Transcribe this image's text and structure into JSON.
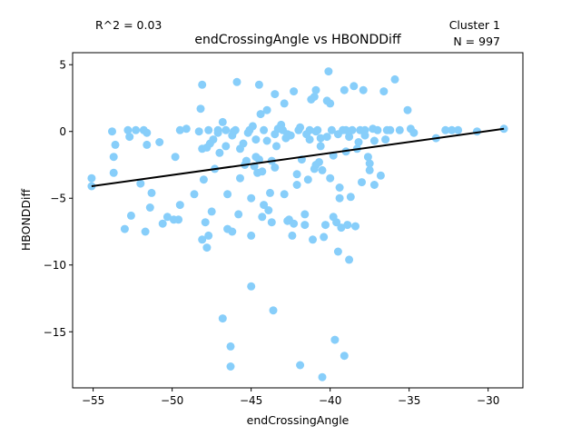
{
  "chart_data": {
    "type": "scatter",
    "title": "endCrossingAngle vs HBONDDiff",
    "xlabel": "endCrossingAngle",
    "ylabel": "HBONDDiff",
    "annotations": {
      "r_squared": "R^2 = 0.03",
      "cluster": "Cluster 1",
      "n": "N = 997"
    },
    "xlim": [
      -56.3,
      -27.8
    ],
    "ylim": [
      -19.2,
      5.9
    ],
    "xticks": [
      -55,
      -50,
      -45,
      -40,
      -35,
      -30
    ],
    "yticks": [
      5,
      0,
      -5,
      -10,
      -15
    ],
    "grid": false,
    "point_color": "#87cefa",
    "line_color": "#000000",
    "regression_line": {
      "x": [
        -55.1,
        -29.0
      ],
      "y": [
        -4.1,
        0.2
      ]
    },
    "points": [
      [
        -55.1,
        -3.5
      ],
      [
        -53.8,
        0.0
      ],
      [
        -53.6,
        -1.0
      ],
      [
        -53.7,
        -1.9
      ],
      [
        -53.7,
        -3.1
      ],
      [
        -53.0,
        -7.3
      ],
      [
        -52.8,
        0.1
      ],
      [
        -52.7,
        -0.4
      ],
      [
        -52.6,
        -6.3
      ],
      [
        -52.3,
        0.1
      ],
      [
        -52.0,
        -3.9
      ],
      [
        -51.8,
        0.1
      ],
      [
        -51.6,
        -0.1
      ],
      [
        -51.7,
        -7.5
      ],
      [
        -51.6,
        -1.0
      ],
      [
        -51.4,
        -5.7
      ],
      [
        -51.3,
        -4.6
      ],
      [
        -50.8,
        -0.8
      ],
      [
        -50.6,
        -6.9
      ],
      [
        -50.3,
        -6.4
      ],
      [
        -49.9,
        -6.6
      ],
      [
        -49.6,
        -6.6
      ],
      [
        -49.5,
        0.1
      ],
      [
        -49.5,
        -5.5
      ],
      [
        -49.1,
        0.2
      ],
      [
        -48.6,
        -4.7
      ],
      [
        -48.3,
        0.0
      ],
      [
        -48.2,
        1.7
      ],
      [
        -48.1,
        3.5
      ],
      [
        -48.0,
        -3.6
      ],
      [
        -48.1,
        -1.3
      ],
      [
        -48.1,
        -8.1
      ],
      [
        -47.9,
        -6.8
      ],
      [
        -47.8,
        -8.7
      ],
      [
        -47.7,
        -7.8
      ],
      [
        -47.7,
        0.1
      ],
      [
        -47.8,
        -1.2
      ],
      [
        -47.6,
        -0.9
      ],
      [
        -47.5,
        -6.0
      ],
      [
        -47.3,
        -2.8
      ],
      [
        -47.1,
        -0.1
      ],
      [
        -47.1,
        0.1
      ],
      [
        -47.0,
        -1.6
      ],
      [
        -46.8,
        0.7
      ],
      [
        -46.8,
        -14.0
      ],
      [
        -46.6,
        -1.1
      ],
      [
        -46.6,
        0.1
      ],
      [
        -46.5,
        -7.3
      ],
      [
        -46.5,
        -4.7
      ],
      [
        -46.3,
        -17.6
      ],
      [
        -46.3,
        -16.1
      ],
      [
        -46.2,
        -7.5
      ],
      [
        -46.1,
        0.0
      ],
      [
        -46.0,
        0.1
      ],
      [
        -45.9,
        3.7
      ],
      [
        -45.8,
        -6.2
      ],
      [
        -45.7,
        -3.5
      ],
      [
        -45.7,
        -1.3
      ],
      [
        -45.4,
        -2.5
      ],
      [
        -45.3,
        -2.2
      ],
      [
        -45.2,
        -0.1
      ],
      [
        -45.1,
        0.1
      ],
      [
        -45.0,
        -5.0
      ],
      [
        -45.0,
        -7.8
      ],
      [
        -45.0,
        -11.6
      ],
      [
        -44.8,
        -2.6
      ],
      [
        -44.7,
        -1.9
      ],
      [
        -44.7,
        -0.6
      ],
      [
        -44.5,
        -2.1
      ],
      [
        -44.5,
        3.5
      ],
      [
        -44.4,
        1.3
      ],
      [
        -44.3,
        -3.0
      ],
      [
        -44.3,
        -6.4
      ],
      [
        -44.2,
        -5.5
      ],
      [
        -44.2,
        0.1
      ],
      [
        -44.0,
        1.6
      ],
      [
        -43.9,
        -5.9
      ],
      [
        -43.8,
        -4.6
      ],
      [
        -43.7,
        -2.2
      ],
      [
        -43.7,
        -6.8
      ],
      [
        -43.6,
        -13.4
      ],
      [
        -43.5,
        -2.7
      ],
      [
        -43.5,
        2.8
      ],
      [
        -43.4,
        -1.1
      ],
      [
        -43.3,
        0.2
      ],
      [
        -43.1,
        0.5
      ],
      [
        -43.0,
        0.1
      ],
      [
        -42.9,
        2.1
      ],
      [
        -42.8,
        -0.5
      ],
      [
        -42.7,
        -6.7
      ],
      [
        -42.6,
        -6.6
      ],
      [
        -42.5,
        -0.3
      ],
      [
        -42.4,
        -7.8
      ],
      [
        -42.3,
        -6.9
      ],
      [
        -42.3,
        3.0
      ],
      [
        -42.1,
        -4.0
      ],
      [
        -42.1,
        -3.2
      ],
      [
        -41.9,
        -17.5
      ],
      [
        -41.9,
        0.3
      ],
      [
        -41.8,
        -2.1
      ],
      [
        -41.6,
        -6.2
      ],
      [
        -41.6,
        -7.0
      ],
      [
        -41.4,
        -3.6
      ],
      [
        -41.3,
        -0.6
      ],
      [
        -41.3,
        0.1
      ],
      [
        -41.2,
        2.4
      ],
      [
        -41.1,
        -8.1
      ],
      [
        -41.0,
        -2.8
      ],
      [
        -41.0,
        2.6
      ],
      [
        -40.9,
        3.1
      ],
      [
        -40.9,
        -2.5
      ],
      [
        -40.8,
        0.1
      ],
      [
        -40.7,
        -2.3
      ],
      [
        -40.6,
        -1.1
      ],
      [
        -40.6,
        -0.5
      ],
      [
        -40.5,
        -18.4
      ],
      [
        -40.5,
        -2.9
      ],
      [
        -40.4,
        -7.9
      ],
      [
        -40.3,
        -7.0
      ],
      [
        -40.2,
        2.3
      ],
      [
        -40.1,
        4.5
      ],
      [
        -40.0,
        -3.5
      ],
      [
        -40.0,
        2.1
      ],
      [
        -39.9,
        0.1
      ],
      [
        -39.8,
        -1.8
      ],
      [
        -39.8,
        -6.4
      ],
      [
        -39.7,
        -15.6
      ],
      [
        -39.6,
        -6.8
      ],
      [
        -39.5,
        -9.0
      ],
      [
        -39.4,
        -4.2
      ],
      [
        -39.4,
        -5.0
      ],
      [
        -39.3,
        -7.2
      ],
      [
        -39.1,
        3.1
      ],
      [
        -39.1,
        -16.8
      ],
      [
        -39.0,
        -1.5
      ],
      [
        -39.0,
        0.1
      ],
      [
        -38.9,
        -7.0
      ],
      [
        -38.8,
        -9.6
      ],
      [
        -38.7,
        -4.9
      ],
      [
        -38.6,
        0.1
      ],
      [
        -38.5,
        3.4
      ],
      [
        -38.4,
        -7.1
      ],
      [
        -38.3,
        -1.3
      ],
      [
        -38.1,
        0.1
      ],
      [
        -38.0,
        -3.8
      ],
      [
        -37.9,
        3.1
      ],
      [
        -37.8,
        -0.3
      ],
      [
        -37.6,
        -1.9
      ],
      [
        -37.5,
        -2.9
      ],
      [
        -37.5,
        -2.4
      ],
      [
        -37.3,
        0.2
      ],
      [
        -37.2,
        -4.0
      ],
      [
        -37.2,
        -0.7
      ],
      [
        -37.0,
        0.1
      ],
      [
        -36.8,
        -3.3
      ],
      [
        -36.6,
        3.0
      ],
      [
        -36.5,
        -0.6
      ],
      [
        -36.4,
        0.1
      ],
      [
        -36.2,
        0.1
      ],
      [
        -35.9,
        3.9
      ],
      [
        -35.6,
        0.1
      ],
      [
        -35.1,
        1.6
      ],
      [
        -34.9,
        0.2
      ],
      [
        -34.7,
        -0.1
      ],
      [
        -33.3,
        -0.5
      ],
      [
        -32.7,
        0.1
      ],
      [
        -32.3,
        0.1
      ],
      [
        -31.9,
        0.1
      ],
      [
        -30.7,
        0.0
      ],
      [
        -29.0,
        0.2
      ],
      [
        -55.1,
        -4.1
      ],
      [
        -49.8,
        -1.9
      ],
      [
        -47.4,
        -0.6
      ],
      [
        -46.2,
        -0.3
      ],
      [
        -45.5,
        -0.9
      ],
      [
        -44.9,
        0.4
      ],
      [
        -44.6,
        -3.1
      ],
      [
        -44.0,
        -0.7
      ],
      [
        -43.5,
        -0.2
      ],
      [
        -42.9,
        -4.7
      ],
      [
        -42.7,
        -0.2
      ],
      [
        -42.0,
        0.1
      ],
      [
        -41.5,
        -0.2
      ],
      [
        -40.9,
        0.0
      ],
      [
        -40.2,
        -0.4
      ],
      [
        -39.5,
        -0.2
      ],
      [
        -39.2,
        0.1
      ],
      [
        -38.8,
        -0.4
      ],
      [
        -38.2,
        -0.8
      ],
      [
        -37.8,
        0.1
      ]
    ]
  }
}
